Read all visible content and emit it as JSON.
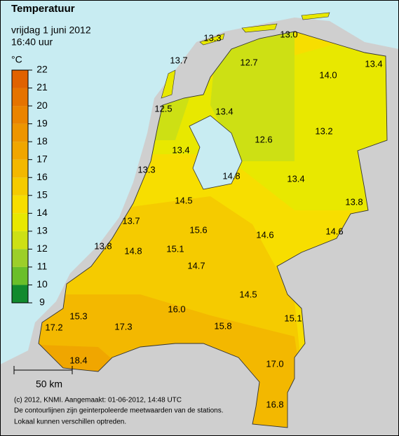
{
  "header": {
    "title": "Temperatuur",
    "date": "vrijdag 1 juni 2012",
    "time": "16:40 uur"
  },
  "legend": {
    "unit": "°C",
    "ticks": [
      9,
      10,
      11,
      12,
      13,
      14,
      15,
      16,
      17,
      18,
      19,
      20,
      21,
      22
    ],
    "colors": [
      "#118a2e",
      "#6abf2a",
      "#9ccf2a",
      "#cde014",
      "#e8e800",
      "#f7de00",
      "#f5cb00",
      "#f3b800",
      "#f0a600",
      "#ed9500",
      "#ea8400",
      "#e57300",
      "#e06200"
    ]
  },
  "stations": [
    "13.3",
    "13.0",
    "13.7",
    "12.7",
    "14.0",
    "13.4",
    "12.5",
    "13.4",
    "13.2",
    "12.6",
    "13.4",
    "13.3",
    "14.8",
    "13.4",
    "14.5",
    "13.8",
    "13.7",
    "15.6",
    "14.6",
    "14.6",
    "13.8",
    "14.8",
    "15.1",
    "14.7",
    "14.5",
    "15.3",
    "16.0",
    "15.1",
    "17.2",
    "17.3",
    "15.8",
    "18.4",
    "17.0",
    "16.8"
  ],
  "scale_bar": {
    "label": "50 km"
  },
  "footer": [
    "(c) 2012, KNMI. Aangemaakt: 01-06-2012, 14:48 UTC",
    "De contourlijnen zijn geinterpoleerde meetwaarden van de stations.",
    "Lokaal kunnen verschillen optreden."
  ]
}
